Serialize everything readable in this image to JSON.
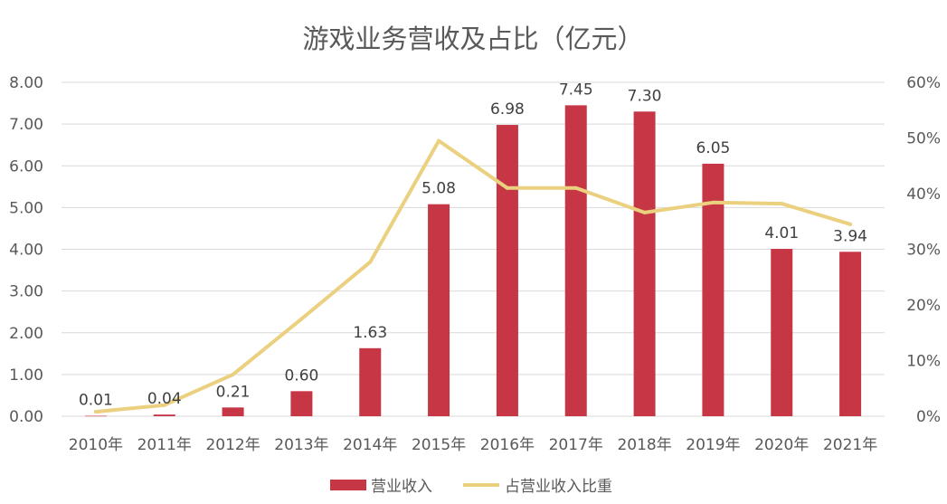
{
  "chart_data": {
    "type": "bar",
    "title": "游戏业务营收及占比（亿元）",
    "categories": [
      "2010年",
      "2011年",
      "2012年",
      "2013年",
      "2014年",
      "2015年",
      "2016年",
      "2017年",
      "2018年",
      "2019年",
      "2020年",
      "2021年"
    ],
    "series": [
      {
        "name": "营业收入",
        "type": "bar",
        "axis": "left",
        "color": "#c63645",
        "values": [
          0.01,
          0.04,
          0.21,
          0.6,
          1.63,
          5.08,
          6.98,
          7.45,
          7.3,
          6.05,
          4.01,
          3.94
        ],
        "labels": [
          "0.01",
          "0.04",
          "0.21",
          "0.60",
          "1.63",
          "5.08",
          "6.98",
          "7.45",
          "7.30",
          "6.05",
          "4.01",
          "3.94"
        ]
      },
      {
        "name": "占营业收入比重",
        "type": "line",
        "axis": "right",
        "color": "#ead07f",
        "values": [
          0.008,
          0.02,
          0.075,
          0.175,
          0.277,
          0.495,
          0.41,
          0.41,
          0.366,
          0.384,
          0.382,
          0.345
        ]
      }
    ],
    "y_left": {
      "ylim": [
        0,
        8
      ],
      "ticks": [
        "0.00",
        "1.00",
        "2.00",
        "3.00",
        "4.00",
        "5.00",
        "6.00",
        "7.00",
        "8.00"
      ]
    },
    "y_right": {
      "ylim": [
        0,
        0.6
      ],
      "ticks": [
        "0%",
        "10%",
        "20%",
        "30%",
        "40%",
        "50%",
        "60%"
      ]
    },
    "grid": true,
    "legend": "bottom"
  }
}
